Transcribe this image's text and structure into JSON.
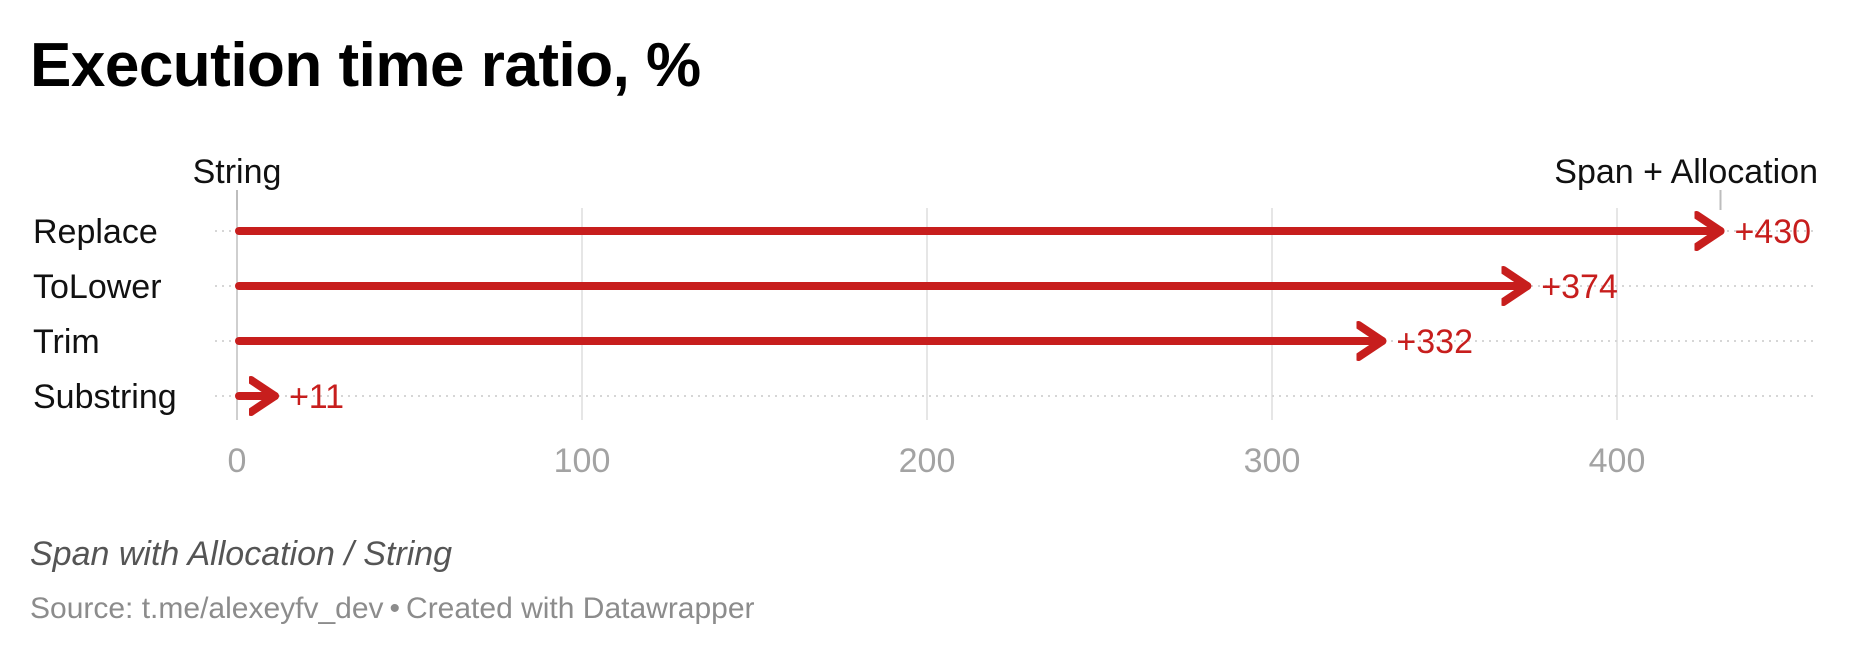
{
  "chart_data": {
    "type": "arrow",
    "title": "Execution time ratio, %",
    "notes": "Span with Allocation / String",
    "source": "Source: t.me/alexeyfv_dev",
    "credit": "Created with Datawrapper",
    "start_label": "String",
    "end_label": "Span + Allocation",
    "categories": [
      "Replace",
      "ToLower",
      "Trim",
      "Substring"
    ],
    "values": [
      430,
      374,
      332,
      11
    ],
    "value_labels": [
      "+430",
      "+374",
      "+332",
      "+11"
    ],
    "x_ticks": [
      0,
      100,
      200,
      300,
      400
    ],
    "xlim": [
      0,
      460
    ],
    "grid": true,
    "colors": {
      "arrow": "#c71e1d",
      "grid": "#e6e6e6",
      "tick_label": "#a3a3a3",
      "text": "#111111"
    }
  }
}
